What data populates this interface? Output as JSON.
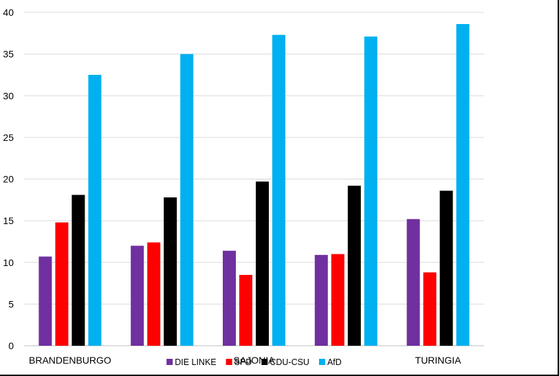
{
  "chart_data": {
    "type": "bar",
    "categories": [
      "BRANDENBURGO",
      "",
      "SAJONIA",
      "",
      "TURINGIA"
    ],
    "series": [
      {
        "name": "DIE LINKE",
        "color": "#7030A0",
        "values": [
          10.7,
          12.0,
          11.4,
          10.9,
          15.2
        ]
      },
      {
        "name": "SPD",
        "color": "#FF0000",
        "values": [
          14.8,
          12.4,
          8.5,
          11.0,
          8.8
        ]
      },
      {
        "name": "CDU-CSU",
        "color": "#000000",
        "values": [
          18.1,
          17.8,
          19.7,
          19.2,
          18.6
        ]
      },
      {
        "name": "AfD",
        "color": "#00B0F0",
        "values": [
          32.5,
          35.0,
          37.3,
          37.1,
          38.6
        ]
      }
    ],
    "yticks": [
      "0",
      "5",
      "10",
      "15",
      "20",
      "25",
      "30",
      "35",
      "40"
    ],
    "ylim": [
      0,
      40
    ],
    "grid": true,
    "legend": "bottom"
  }
}
